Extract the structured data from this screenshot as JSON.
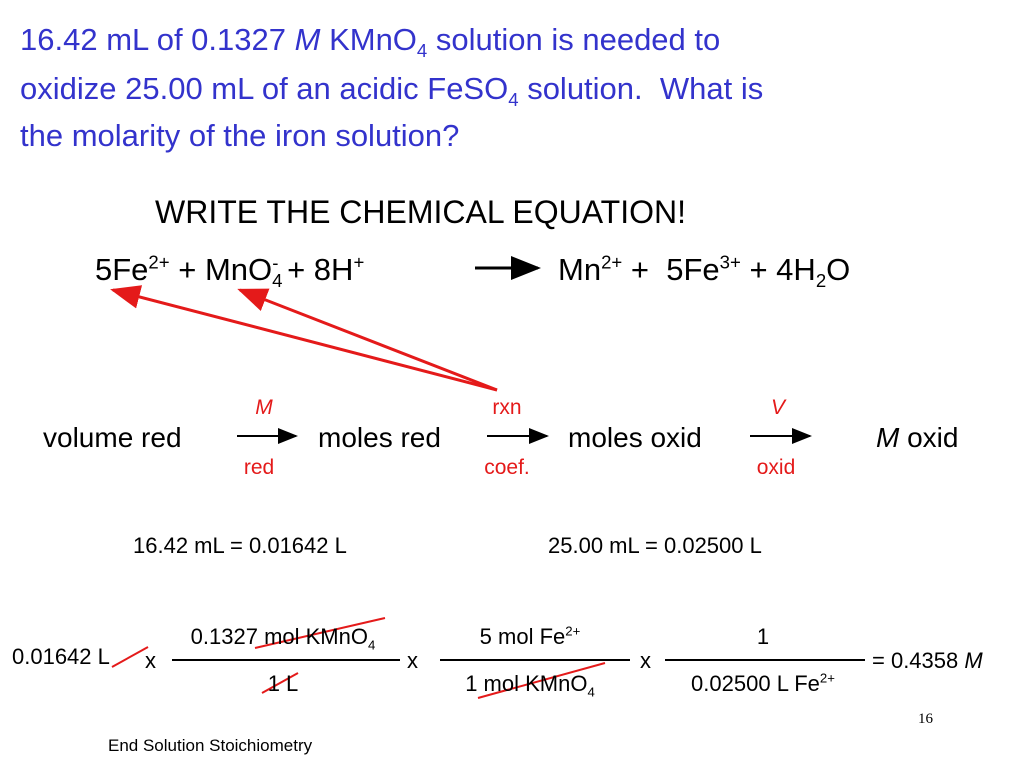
{
  "title": {
    "parts": [
      "16.42 mL of 0.1327 ",
      "M",
      " KMnO",
      "4",
      " solution is needed to",
      "oxidize 25.00 mL of an acidic FeSO",
      "4",
      " solution.  What is",
      "the molarity of the iron solution?"
    ]
  },
  "heading": "WRITE THE CHEMICAL EQUATION!",
  "equation": {
    "reactants": [
      "5Fe",
      "2+",
      " + MnO",
      "4",
      "-",
      " + 8H",
      "+"
    ],
    "products": [
      "Mn",
      "2+",
      " +  5Fe",
      "3+",
      " + 4H",
      "2",
      "O"
    ]
  },
  "flow": {
    "steps": [
      "volume red",
      "moles red",
      "moles oxid",
      "M",
      " oxid"
    ],
    "arrows": [
      {
        "above": "M",
        "below": "red"
      },
      {
        "above": "rxn",
        "below": "coef."
      },
      {
        "above": "V",
        "below": "oxid"
      }
    ]
  },
  "conversions": [
    "16.42 mL = 0.01642 L",
    "25.00 mL = 0.02500 L"
  ],
  "calculation": {
    "start": "0.01642 L",
    "times": [
      "x",
      "x",
      "x"
    ],
    "factors": [
      {
        "numerator": [
          "0.1327 mol KMnO",
          "4"
        ],
        "denominator": [
          "1 L"
        ]
      },
      {
        "numerator": [
          "5 mol Fe",
          "2+"
        ],
        "denominator": [
          "1 mol KMnO",
          "4"
        ]
      },
      {
        "numerator": [
          "1"
        ],
        "denominator": [
          "0.02500 L Fe",
          "2+"
        ]
      }
    ],
    "result": [
      "= 0.4358 ",
      "M"
    ]
  },
  "slide_number": "16",
  "footer": "End Solution Stoichiometry"
}
